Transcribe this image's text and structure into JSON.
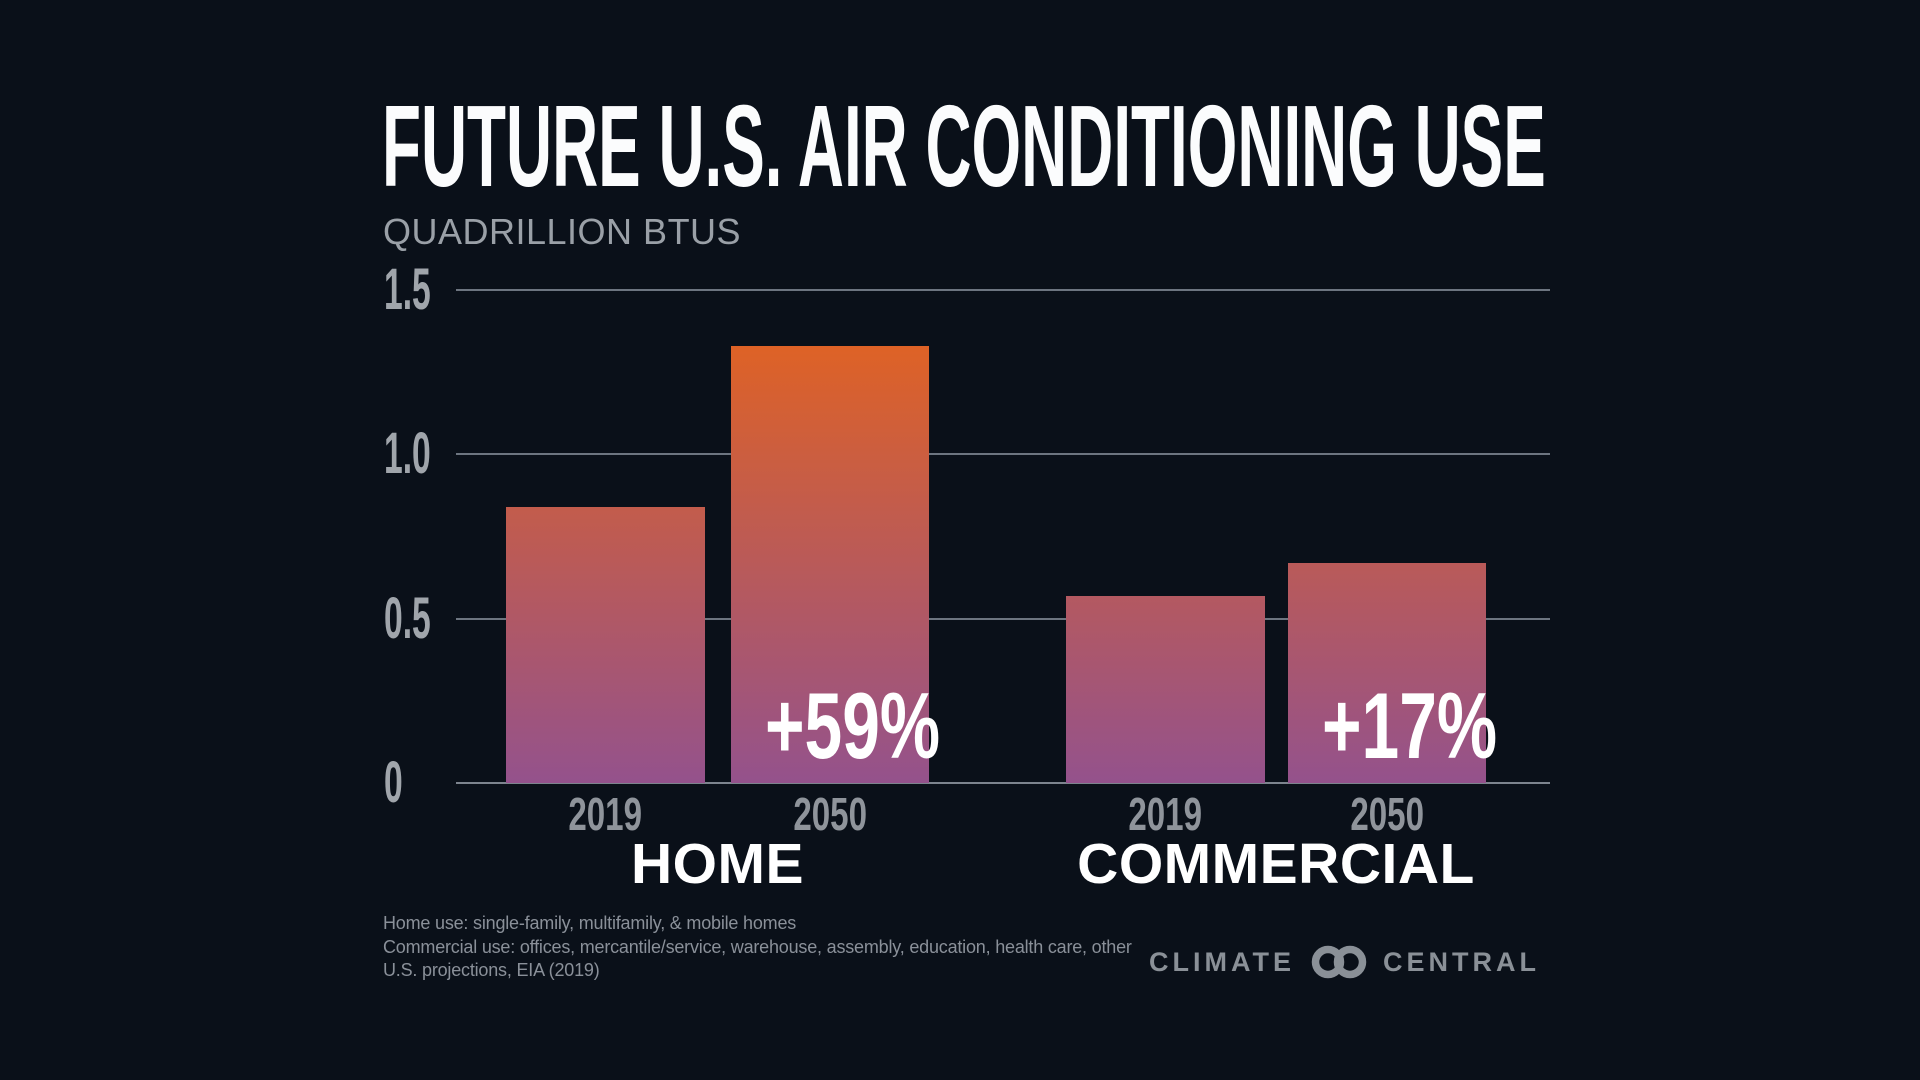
{
  "title": "FUTURE U.S. AIR CONDITIONING USE",
  "subtitle": "QUADRILLION BTUS",
  "chart_data": {
    "type": "bar",
    "title": "FUTURE U.S. AIR CONDITIONING USE",
    "unit_label": "QUADRILLION BTUS",
    "ylim": [
      0,
      1.5
    ],
    "yticks": [
      1.5,
      1.0,
      0.5,
      0
    ],
    "ytick_labels": [
      "1.5",
      "1.0",
      "0.5",
      "0"
    ],
    "grid": "horizontal-gridlines",
    "legend": "none",
    "groups": [
      {
        "label": "HOME",
        "pct_change_label": "+59%",
        "series": [
          {
            "x": "2019",
            "value": 0.84
          },
          {
            "x": "2050",
            "value": 1.33
          }
        ]
      },
      {
        "label": "COMMERCIAL",
        "pct_change_label": "+17%",
        "series": [
          {
            "x": "2019",
            "value": 0.57
          },
          {
            "x": "2050",
            "value": 0.67
          }
        ]
      }
    ]
  },
  "footnotes": [
    "Home use: single-family, multifamily, & mobile homes",
    "Commercial use: offices, mercantile/service, warehouse, assembly, education, health care, other",
    "U.S. projections, EIA (2019)"
  ],
  "logo": {
    "brand_left": "CLIMATE",
    "brand_right": "CENTRAL"
  },
  "colors": {
    "background": "#0a1019",
    "bar_gradient_top": "#de6226",
    "bar_gradient_bottom": "#94528c",
    "gridline": "#6d7580",
    "baseline": "#7d848e",
    "tick_label": "#a0a5ab",
    "year_label": "#8f949b",
    "subtitle": "#9aa0a7",
    "footnote": "#8a9099",
    "logo": "#8a9097",
    "title": "#fbfcfd",
    "pct_label": "#ffffff"
  }
}
